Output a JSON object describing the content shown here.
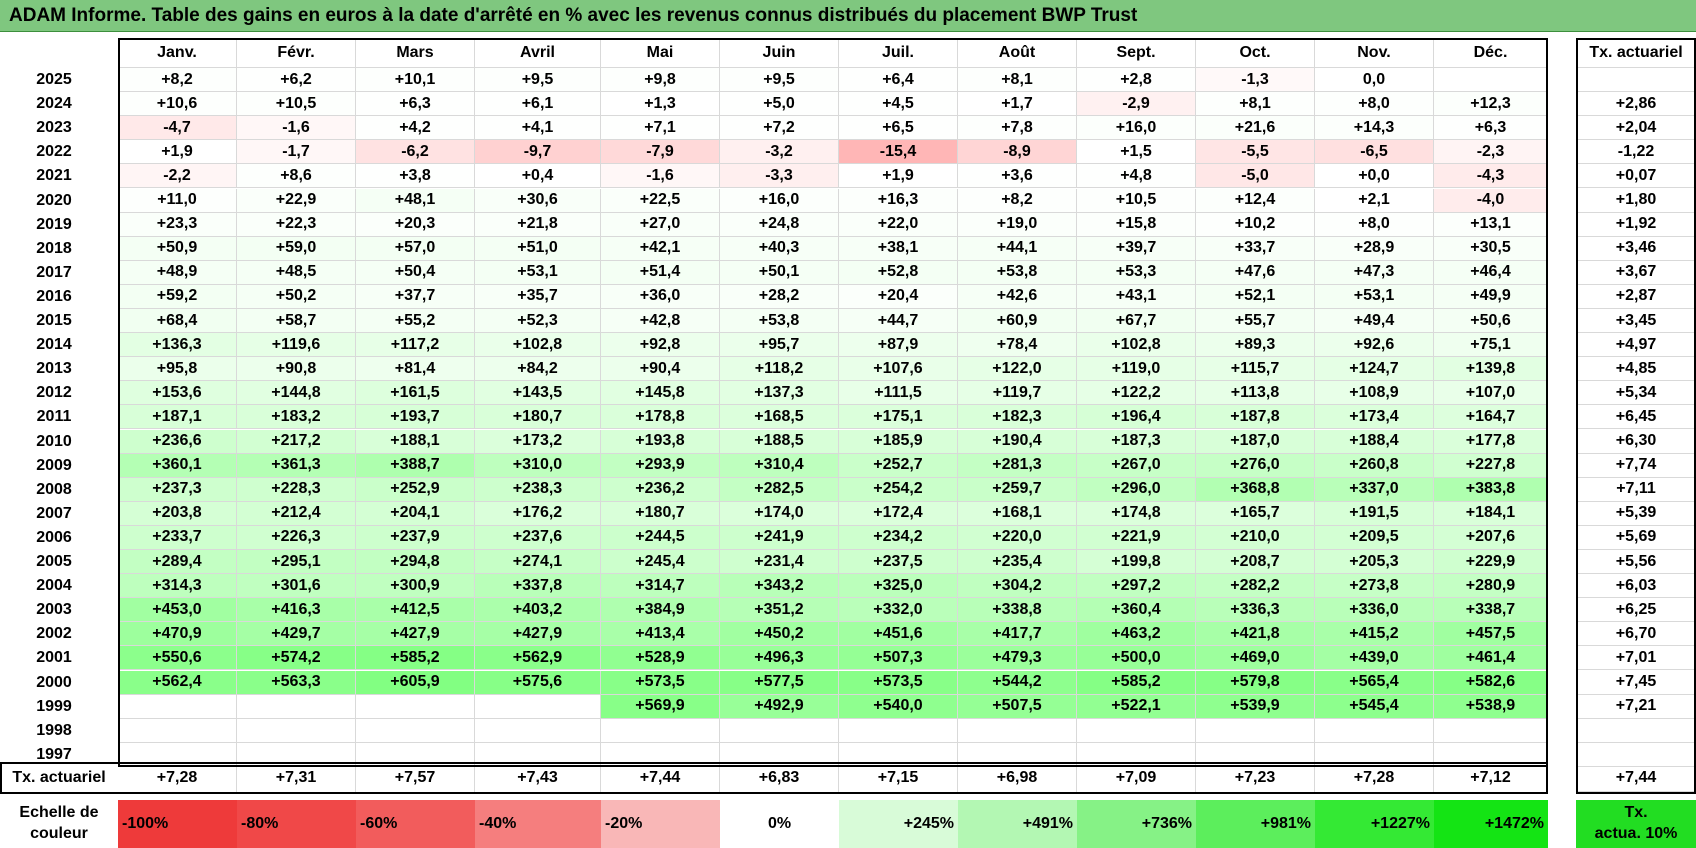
{
  "title": "ADAM Informe. Table des gains en euros à la date d'arrêté en % avec les revenus connus distribués du placement BWP Trust",
  "colors": {
    "title_bg": "#7fc77f",
    "negative_base": "#ff0000",
    "positive_base": "#00ff00"
  },
  "months": [
    "Janv.",
    "Févr.",
    "Mars",
    "Avril",
    "Mai",
    "Juin",
    "Juil.",
    "Août",
    "Sept.",
    "Oct.",
    "Nov.",
    "Déc."
  ],
  "actuarial_header": "Tx. actuariel",
  "rows": [
    {
      "year": "2025",
      "values": [
        "+8,2",
        "+6,2",
        "+10,1",
        "+9,5",
        "+9,8",
        "+9,5",
        "+6,4",
        "+8,1",
        "+2,8",
        "-1,3",
        "0,0",
        ""
      ],
      "rate": ""
    },
    {
      "year": "2024",
      "values": [
        "+10,6",
        "+10,5",
        "+6,3",
        "+6,1",
        "+1,3",
        "+5,0",
        "+4,5",
        "+1,7",
        "-2,9",
        "+8,1",
        "+8,0",
        "+12,3"
      ],
      "rate": "+2,86"
    },
    {
      "year": "2023",
      "values": [
        "-4,7",
        "-1,6",
        "+4,2",
        "+4,1",
        "+7,1",
        "+7,2",
        "+6,5",
        "+7,8",
        "+16,0",
        "+21,6",
        "+14,3",
        "+6,3"
      ],
      "rate": "+2,04"
    },
    {
      "year": "2022",
      "values": [
        "+1,9",
        "-1,7",
        "-6,2",
        "-9,7",
        "-7,9",
        "-3,2",
        "-15,4",
        "-8,9",
        "+1,5",
        "-5,5",
        "-6,5",
        "-2,3"
      ],
      "rate": "-1,22"
    },
    {
      "year": "2021",
      "values": [
        "-2,2",
        "+8,6",
        "+3,8",
        "+0,4",
        "-1,6",
        "-3,3",
        "+1,9",
        "+3,6",
        "+4,8",
        "-5,0",
        "+0,0",
        "-4,3"
      ],
      "rate": "+0,07"
    },
    {
      "year": "2020",
      "values": [
        "+11,0",
        "+22,9",
        "+48,1",
        "+30,6",
        "+22,5",
        "+16,0",
        "+16,3",
        "+8,2",
        "+10,5",
        "+12,4",
        "+2,1",
        "-4,0"
      ],
      "rate": "+1,80"
    },
    {
      "year": "2019",
      "values": [
        "+23,3",
        "+22,3",
        "+20,3",
        "+21,8",
        "+27,0",
        "+24,8",
        "+22,0",
        "+19,0",
        "+15,8",
        "+10,2",
        "+8,0",
        "+13,1"
      ],
      "rate": "+1,92"
    },
    {
      "year": "2018",
      "values": [
        "+50,9",
        "+59,0",
        "+57,0",
        "+51,0",
        "+42,1",
        "+40,3",
        "+38,1",
        "+44,1",
        "+39,7",
        "+33,7",
        "+28,9",
        "+30,5"
      ],
      "rate": "+3,46"
    },
    {
      "year": "2017",
      "values": [
        "+48,9",
        "+48,5",
        "+50,4",
        "+53,1",
        "+51,4",
        "+50,1",
        "+52,8",
        "+53,8",
        "+53,3",
        "+47,6",
        "+47,3",
        "+46,4"
      ],
      "rate": "+3,67"
    },
    {
      "year": "2016",
      "values": [
        "+59,2",
        "+50,2",
        "+37,7",
        "+35,7",
        "+36,0",
        "+28,2",
        "+20,4",
        "+42,6",
        "+43,1",
        "+52,1",
        "+53,1",
        "+49,9"
      ],
      "rate": "+2,87"
    },
    {
      "year": "2015",
      "values": [
        "+68,4",
        "+58,7",
        "+55,2",
        "+52,3",
        "+42,8",
        "+53,8",
        "+44,7",
        "+60,9",
        "+67,7",
        "+55,7",
        "+49,4",
        "+50,6"
      ],
      "rate": "+3,45"
    },
    {
      "year": "2014",
      "values": [
        "+136,3",
        "+119,6",
        "+117,2",
        "+102,8",
        "+92,8",
        "+95,7",
        "+87,9",
        "+78,4",
        "+102,8",
        "+89,3",
        "+92,6",
        "+75,1"
      ],
      "rate": "+4,97"
    },
    {
      "year": "2013",
      "values": [
        "+95,8",
        "+90,8",
        "+81,4",
        "+84,2",
        "+90,4",
        "+118,2",
        "+107,6",
        "+122,0",
        "+119,0",
        "+115,7",
        "+124,7",
        "+139,8"
      ],
      "rate": "+4,85"
    },
    {
      "year": "2012",
      "values": [
        "+153,6",
        "+144,8",
        "+161,5",
        "+143,5",
        "+145,8",
        "+137,3",
        "+111,5",
        "+119,7",
        "+122,2",
        "+113,8",
        "+108,9",
        "+107,0"
      ],
      "rate": "+5,34"
    },
    {
      "year": "2011",
      "values": [
        "+187,1",
        "+183,2",
        "+193,7",
        "+180,7",
        "+178,8",
        "+168,5",
        "+175,1",
        "+182,3",
        "+196,4",
        "+187,8",
        "+173,4",
        "+164,7"
      ],
      "rate": "+6,45"
    },
    {
      "year": "2010",
      "values": [
        "+236,6",
        "+217,2",
        "+188,1",
        "+173,2",
        "+193,8",
        "+188,5",
        "+185,9",
        "+190,4",
        "+187,3",
        "+187,0",
        "+188,4",
        "+177,8"
      ],
      "rate": "+6,30"
    },
    {
      "year": "2009",
      "values": [
        "+360,1",
        "+361,3",
        "+388,7",
        "+310,0",
        "+293,9",
        "+310,4",
        "+252,7",
        "+281,3",
        "+267,0",
        "+276,0",
        "+260,8",
        "+227,8"
      ],
      "rate": "+7,74"
    },
    {
      "year": "2008",
      "values": [
        "+237,3",
        "+228,3",
        "+252,9",
        "+238,3",
        "+236,2",
        "+282,5",
        "+254,2",
        "+259,7",
        "+296,0",
        "+368,8",
        "+337,0",
        "+383,8"
      ],
      "rate": "+7,11"
    },
    {
      "year": "2007",
      "values": [
        "+203,8",
        "+212,4",
        "+204,1",
        "+176,2",
        "+180,7",
        "+174,0",
        "+172,4",
        "+168,1",
        "+174,8",
        "+165,7",
        "+191,5",
        "+184,1"
      ],
      "rate": "+5,39"
    },
    {
      "year": "2006",
      "values": [
        "+233,7",
        "+226,3",
        "+237,9",
        "+237,6",
        "+244,5",
        "+241,9",
        "+234,2",
        "+220,0",
        "+221,9",
        "+210,0",
        "+209,5",
        "+207,6"
      ],
      "rate": "+5,69"
    },
    {
      "year": "2005",
      "values": [
        "+289,4",
        "+295,1",
        "+294,8",
        "+274,1",
        "+245,4",
        "+231,4",
        "+237,5",
        "+235,4",
        "+199,8",
        "+208,7",
        "+205,3",
        "+229,9"
      ],
      "rate": "+5,56"
    },
    {
      "year": "2004",
      "values": [
        "+314,3",
        "+301,6",
        "+300,9",
        "+337,8",
        "+314,7",
        "+343,2",
        "+325,0",
        "+304,2",
        "+297,2",
        "+282,2",
        "+273,8",
        "+280,9"
      ],
      "rate": "+6,03"
    },
    {
      "year": "2003",
      "values": [
        "+453,0",
        "+416,3",
        "+412,5",
        "+403,2",
        "+384,9",
        "+351,2",
        "+332,0",
        "+338,8",
        "+360,4",
        "+336,3",
        "+336,0",
        "+338,7"
      ],
      "rate": "+6,25"
    },
    {
      "year": "2002",
      "values": [
        "+470,9",
        "+429,7",
        "+427,9",
        "+427,9",
        "+413,4",
        "+450,2",
        "+451,6",
        "+417,7",
        "+463,2",
        "+421,8",
        "+415,2",
        "+457,5"
      ],
      "rate": "+6,70"
    },
    {
      "year": "2001",
      "values": [
        "+550,6",
        "+574,2",
        "+585,2",
        "+562,9",
        "+528,9",
        "+496,3",
        "+507,3",
        "+479,3",
        "+500,0",
        "+469,0",
        "+439,0",
        "+461,4"
      ],
      "rate": "+7,01"
    },
    {
      "year": "2000",
      "values": [
        "+562,4",
        "+563,3",
        "+605,9",
        "+575,6",
        "+573,5",
        "+577,5",
        "+573,5",
        "+544,2",
        "+585,2",
        "+579,8",
        "+565,4",
        "+582,6"
      ],
      "rate": "+7,45"
    },
    {
      "year": "1999",
      "values": [
        "",
        "",
        "",
        "",
        "+569,9",
        "+492,9",
        "+540,0",
        "+507,5",
        "+522,1",
        "+539,9",
        "+545,4",
        "+538,9"
      ],
      "rate": "+7,21"
    },
    {
      "year": "1998",
      "values": [
        "",
        "",
        "",
        "",
        "",
        "",
        "",
        "",
        "",
        "",
        "",
        ""
      ],
      "rate": ""
    },
    {
      "year": "1997",
      "values": [
        "",
        "",
        "",
        "",
        "",
        "",
        "",
        "",
        "",
        "",
        "",
        ""
      ],
      "rate": ""
    }
  ],
  "footer": {
    "label": "Tx. actuariel",
    "values": [
      "+7,28",
      "+7,31",
      "+7,57",
      "+7,43",
      "+7,44",
      "+6,83",
      "+7,15",
      "+6,98",
      "+7,09",
      "+7,23",
      "+7,28",
      "+7,12"
    ],
    "rate": "+7,44"
  },
  "legend": {
    "label_line1": "Echelle de",
    "label_line2": "couleur",
    "items": [
      {
        "text": "-100%",
        "color": "#ee3a3a"
      },
      {
        "text": "-80%",
        "color": "#f04848"
      },
      {
        "text": "-60%",
        "color": "#f25c5c"
      },
      {
        "text": "-40%",
        "color": "#f57e7e"
      },
      {
        "text": "-20%",
        "color": "#f9b7b7"
      },
      {
        "text": "0%",
        "color": "#ffffff"
      },
      {
        "text": "+245%",
        "color": "#d8fbd8"
      },
      {
        "text": "+491%",
        "color": "#b3f7b3"
      },
      {
        "text": "+736%",
        "color": "#86f286"
      },
      {
        "text": "+981%",
        "color": "#5cee5c"
      },
      {
        "text": "+1227%",
        "color": "#34e934"
      },
      {
        "text": "+1472%",
        "color": "#14e414"
      }
    ],
    "rate_line1": "Tx.",
    "rate_line2": "actua. 10%",
    "rate_color": "#22dd22"
  }
}
